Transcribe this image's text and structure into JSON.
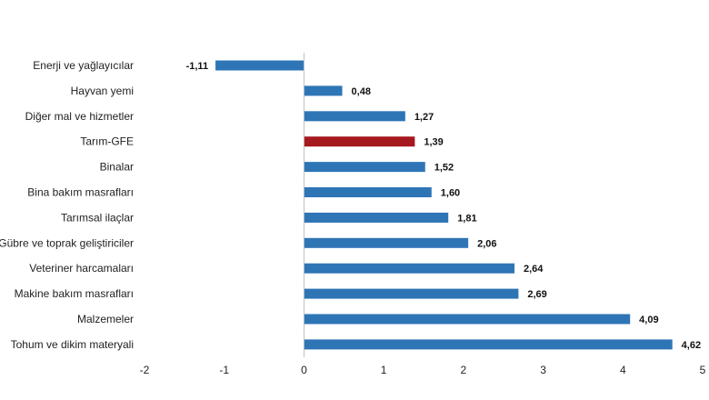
{
  "chart_data": {
    "type": "bar",
    "orientation": "horizontal",
    "title": "",
    "xlabel": "",
    "ylabel": "",
    "xlim": [
      -2,
      5
    ],
    "ticks": [
      "-2",
      "-1",
      "0",
      "1",
      "2",
      "3",
      "4",
      "5"
    ],
    "tick_values": [
      -2,
      -1,
      0,
      1,
      2,
      3,
      4,
      5
    ],
    "grid": false,
    "colors": {
      "default": "#2e75b6",
      "highlight": "#a6191f"
    },
    "categories": [
      "Enerji  ve yağlayıcılar",
      "Hayvan yemi",
      "Diğer mal ve hizmetler",
      "Tarım-GFE",
      "Binalar",
      "Bina bakım masrafları",
      "Tarımsal ilaçlar",
      "Gübre ve toprak geliştiriciler",
      "Veteriner harcamaları",
      "Makine bakım masrafları",
      "Malzemeler",
      "Tohum ve dikim materyali"
    ],
    "values": [
      -1.11,
      0.48,
      1.27,
      1.39,
      1.52,
      1.6,
      1.81,
      2.06,
      2.64,
      2.69,
      4.09,
      4.62
    ],
    "value_labels": [
      "-1,11",
      "0,48",
      "1,27",
      "1,39",
      "1,52",
      "1,60",
      "1,81",
      "2,06",
      "2,64",
      "2,69",
      "4,09",
      "4,62"
    ],
    "highlight": [
      false,
      false,
      false,
      true,
      false,
      false,
      false,
      false,
      false,
      false,
      false,
      false
    ]
  }
}
